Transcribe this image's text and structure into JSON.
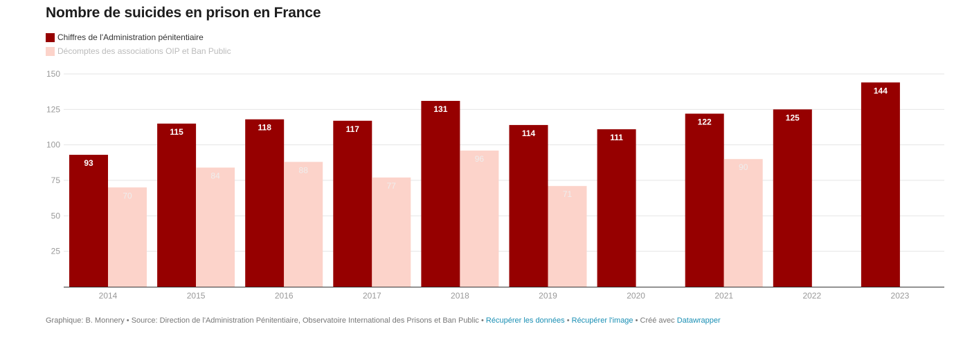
{
  "title": "Nombre de suicides en prison en France",
  "legend": [
    {
      "label": "Chiffres de l'Administration pénitentiaire",
      "color": "#960000"
    },
    {
      "label": "Décomptes des associations OIP et Ban Public",
      "color": "#fcd3ca"
    }
  ],
  "chart_data": {
    "type": "bar",
    "title": "Nombre de suicides en prison en France",
    "categories": [
      "2014",
      "2015",
      "2016",
      "2017",
      "2018",
      "2019",
      "2020",
      "2021",
      "2022",
      "2023"
    ],
    "series": [
      {
        "name": "Chiffres de l'Administration pénitentiaire",
        "color": "#960000",
        "label_color": "#ffffff",
        "values": [
          93,
          115,
          118,
          117,
          131,
          114,
          111,
          122,
          125,
          144
        ]
      },
      {
        "name": "Décomptes des associations OIP et Ban Public",
        "color": "#fcd3ca",
        "label_color": "#eeeeee",
        "values": [
          70,
          84,
          88,
          77,
          96,
          71,
          null,
          90,
          null,
          null
        ]
      }
    ],
    "y_ticks": [
      25,
      50,
      75,
      100,
      125,
      150
    ],
    "ylim": [
      0,
      150
    ],
    "grid": true,
    "legend_position": "top-left"
  },
  "footer": {
    "credit": "Graphique: B. Monnery • Source: Direction de l'Administration Pénitentiaire, Observatoire International des Prisons et Ban Public • ",
    "link_data": "Récupérer les données",
    "sep1": " • ",
    "link_image": "Récupérer l'image",
    "sep2": " • Créé avec ",
    "link_dw": "Datawrapper"
  }
}
